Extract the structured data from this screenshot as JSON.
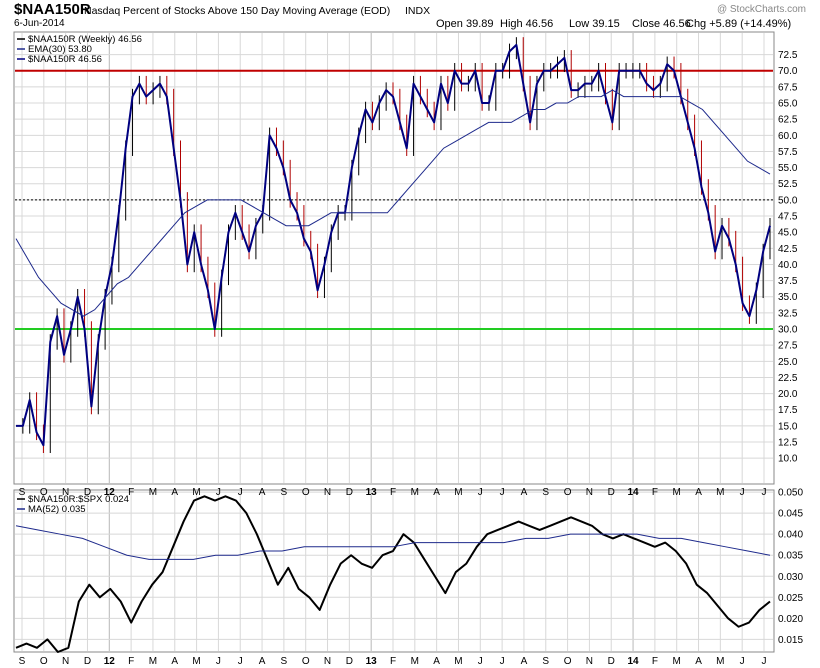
{
  "header": {
    "symbol": "$NAA150R",
    "description": "Nasdaq Percent of Stocks Above 150 Day Moving Average (EOD)",
    "exchange": "INDX",
    "date": "6-Jun-2014",
    "brand": "@ StockCharts.com",
    "quote": {
      "open": "Open 39.89",
      "high": "High 46.56",
      "low": "Low 39.15",
      "close": "Close 46.56",
      "chg": "Chg +5.89 (+14.49%)"
    }
  },
  "colors": {
    "price": "#000080",
    "ema": "#1e2a8c",
    "upper_line": "#c00000",
    "lower_line": "#22cc22",
    "ratio": "#000000",
    "ma": "#1e2a8c",
    "grid": "#d8d8d8"
  },
  "chart_data": [
    {
      "type": "line",
      "title": "$NAA150R Nasdaq Percent of Stocks Above 150 Day Moving Average (EOD)",
      "legend": [
        {
          "label": "$NAA150R (Weekly) 46.56",
          "color": "#000000"
        },
        {
          "label": "EMA(30) 53.80",
          "color": "#1e2a8c"
        },
        {
          "label": "$NAA150R 46.56",
          "color": "#000080"
        }
      ],
      "ylim": [
        6,
        76
      ],
      "yticks": [
        "10.0",
        "12.5",
        "15.0",
        "17.5",
        "20.0",
        "22.5",
        "25.0",
        "27.5",
        "30.0",
        "32.5",
        "35.0",
        "37.5",
        "40.0",
        "42.5",
        "45.0",
        "47.5",
        "50.0",
        "52.5",
        "55.0",
        "57.5",
        "60.0",
        "62.5",
        "65.0",
        "67.5",
        "70.0",
        "72.5"
      ],
      "horizontal_lines": [
        {
          "value": 70,
          "color": "red",
          "style": "solid"
        },
        {
          "value": 50,
          "color": "black",
          "style": "dotted"
        },
        {
          "value": 30,
          "color": "green",
          "style": "solid"
        }
      ],
      "x_count": 144,
      "series": [
        {
          "name": "$NAA150R",
          "values": [
            15,
            15,
            19,
            14,
            12,
            28,
            32,
            26,
            30,
            35,
            30,
            18,
            28,
            35,
            40,
            48,
            58,
            66,
            68,
            66,
            67,
            68,
            66,
            58,
            50,
            40,
            45,
            40,
            36,
            30,
            38,
            45,
            48,
            45,
            42,
            46,
            48,
            60,
            58,
            55,
            50,
            48,
            44,
            42,
            36,
            40,
            45,
            48,
            48,
            55,
            60,
            64,
            62,
            65,
            67,
            66,
            62,
            58,
            68,
            66,
            64,
            62,
            68,
            65,
            70,
            68,
            68,
            70,
            65,
            65,
            70,
            70,
            73,
            74,
            68,
            62,
            68,
            70,
            70,
            71,
            72,
            67,
            67,
            68,
            68,
            70,
            66,
            62,
            70,
            70,
            70,
            70,
            68,
            67,
            68,
            71,
            70,
            66,
            62,
            58,
            52,
            48,
            42,
            46,
            44,
            40,
            34,
            32,
            36,
            42,
            46
          ]
        },
        {
          "name": "EMA(30)",
          "values": [
            44,
            41,
            38,
            36,
            34,
            33,
            32,
            33,
            35,
            37,
            38,
            40,
            42,
            44,
            46,
            48,
            49,
            50,
            50,
            50,
            50,
            49,
            48,
            47,
            46,
            46,
            46,
            47,
            48,
            48,
            48,
            48,
            48,
            48,
            50,
            52,
            54,
            56,
            58,
            59,
            60,
            61,
            62,
            62,
            62,
            63,
            64,
            64,
            65,
            65,
            66,
            66,
            66,
            67,
            66,
            66,
            66,
            66,
            66,
            66,
            65,
            64,
            62,
            60,
            58,
            56,
            55,
            54
          ]
        }
      ]
    },
    {
      "type": "line",
      "title": "$NAA150R:$SPX",
      "legend": [
        {
          "label": "$NAA150R:$SPX 0.024",
          "color": "#000000"
        },
        {
          "label": "MA(52) 0.035",
          "color": "#1e2a8c"
        }
      ],
      "ylim": [
        0.012,
        0.0505
      ],
      "yticks": [
        "0.015",
        "0.020",
        "0.025",
        "0.030",
        "0.035",
        "0.040",
        "0.045",
        "0.050"
      ],
      "x_count": 144,
      "series": [
        {
          "name": "$NAA150R:$SPX",
          "values": [
            0.013,
            0.014,
            0.013,
            0.015,
            0.012,
            0.013,
            0.024,
            0.028,
            0.025,
            0.027,
            0.024,
            0.019,
            0.024,
            0.028,
            0.031,
            0.037,
            0.043,
            0.048,
            0.049,
            0.048,
            0.049,
            0.048,
            0.045,
            0.04,
            0.034,
            0.028,
            0.032,
            0.027,
            0.025,
            0.022,
            0.028,
            0.033,
            0.035,
            0.033,
            0.032,
            0.035,
            0.036,
            0.04,
            0.038,
            0.034,
            0.03,
            0.026,
            0.031,
            0.033,
            0.037,
            0.04,
            0.041,
            0.042,
            0.043,
            0.042,
            0.041,
            0.042,
            0.043,
            0.044,
            0.043,
            0.042,
            0.04,
            0.039,
            0.04,
            0.039,
            0.038,
            0.037,
            0.038,
            0.036,
            0.033,
            0.028,
            0.026,
            0.023,
            0.02,
            0.018,
            0.019,
            0.022,
            0.024
          ]
        },
        {
          "name": "MA(52)",
          "values": [
            0.042,
            0.041,
            0.04,
            0.039,
            0.037,
            0.035,
            0.034,
            0.034,
            0.034,
            0.035,
            0.035,
            0.036,
            0.036,
            0.037,
            0.037,
            0.037,
            0.037,
            0.037,
            0.038,
            0.038,
            0.038,
            0.038,
            0.038,
            0.039,
            0.039,
            0.04,
            0.04,
            0.04,
            0.04,
            0.039,
            0.039,
            0.038,
            0.037,
            0.036,
            0.035
          ]
        }
      ],
      "x_tick_labels": [
        "S",
        "O",
        "N",
        "D",
        "12",
        "F",
        "M",
        "A",
        "M",
        "J",
        "J",
        "A",
        "S",
        "O",
        "N",
        "D",
        "13",
        "F",
        "M",
        "A",
        "M",
        "J",
        "J",
        "A",
        "S",
        "O",
        "N",
        "D",
        "14",
        "F",
        "M",
        "A",
        "M",
        "J",
        "J"
      ]
    }
  ]
}
